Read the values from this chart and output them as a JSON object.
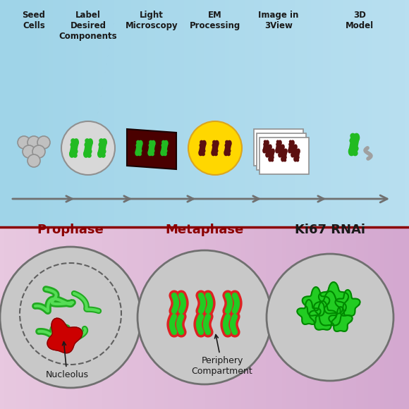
{
  "top_bg_color_top": "#87CEEB",
  "top_bg_color_bottom": "#ADD8E6",
  "bottom_bg_color_top": "#C8A0C8",
  "bottom_bg_color_bottom": "#E8C0D8",
  "divider_color": "#8B0000",
  "top_labels": [
    "Seed\nCells",
    "Label\nDesired\nComponents",
    "Light\nMicroscopy",
    "EM\nProcessing",
    "Image in\n3View",
    "3D\nModel"
  ],
  "bottom_labels": [
    "Prophase",
    "Metaphase",
    "Ki67 RNAi"
  ],
  "arrow_color": "#808080",
  "dark_red": "#8B0000",
  "green": "#00CC00",
  "bright_green": "#00DD00",
  "red": "#CC0000",
  "light_gray": "#D0D0D0",
  "gray": "#A0A0A0",
  "dark_gray": "#606060",
  "yellow": "#FFD700",
  "dark_maroon": "#5C1010",
  "cell_outline": "#606060",
  "circle_fill": "#C8C8C8",
  "circle_fill2": "#BEBEBE"
}
